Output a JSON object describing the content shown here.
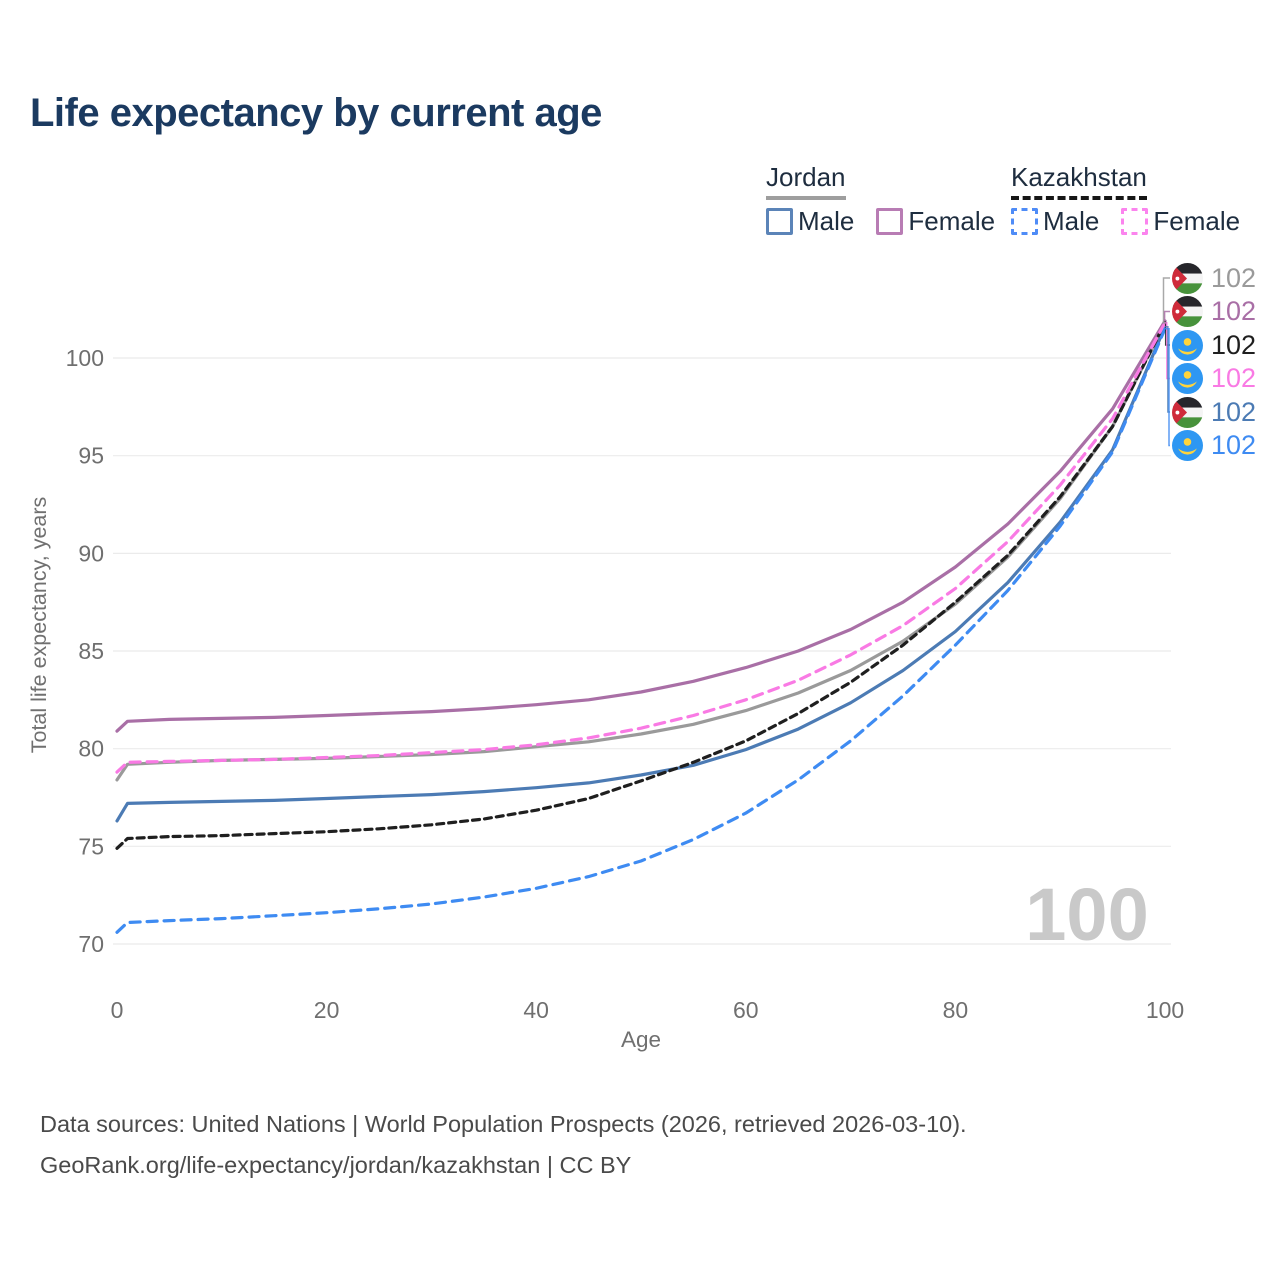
{
  "header": {
    "title": "Life expectancy by current age"
  },
  "legend": {
    "groups": [
      {
        "country": "Jordan",
        "line_style": "solid",
        "line_color": "#9e9e9e",
        "items": [
          {
            "label": "Male",
            "color": "#5b84b8",
            "dashed": false
          },
          {
            "label": "Female",
            "color": "#b87cb4",
            "dashed": false
          }
        ]
      },
      {
        "country": "Kazakhstan",
        "line_style": "dashed",
        "line_color": "#161616",
        "items": [
          {
            "label": "Male",
            "color": "#4f8cf7",
            "dashed": true
          },
          {
            "label": "Female",
            "color": "#fb84ee",
            "dashed": true
          }
        ]
      }
    ]
  },
  "chart_data": {
    "type": "line",
    "title": "Life expectancy by current age",
    "xlabel": "Age",
    "ylabel": "Total life expectancy, years",
    "xlim": [
      0,
      100
    ],
    "ylim": [
      69.5,
      103
    ],
    "xticks": [
      0,
      20,
      40,
      60,
      80,
      100
    ],
    "yticks": [
      70,
      75,
      80,
      85,
      90,
      95,
      100
    ],
    "grid": "horizontal",
    "legend_position": "top-right",
    "watermark_age": "100",
    "ages": [
      0,
      1,
      5,
      10,
      15,
      20,
      25,
      30,
      35,
      40,
      45,
      50,
      55,
      60,
      65,
      70,
      75,
      80,
      85,
      90,
      95,
      100
    ],
    "series": [
      {
        "id": "jordan-all",
        "country": "Jordan",
        "sex": "Both sexes",
        "name": "Jordan",
        "color": "#9a9a9a",
        "dashed": false,
        "row": 0,
        "end_label": "102",
        "values": [
          78.4,
          79.2,
          79.3,
          79.4,
          79.45,
          79.5,
          79.6,
          79.7,
          79.85,
          80.1,
          80.35,
          80.75,
          81.25,
          81.95,
          82.85,
          84.0,
          85.5,
          87.4,
          89.8,
          92.8,
          96.5,
          101.8
        ]
      },
      {
        "id": "jordan-female",
        "country": "Jordan",
        "sex": "Female",
        "name": "Jordan Female",
        "color": "#a96fa6",
        "dashed": false,
        "row": 1,
        "end_label": "102",
        "values": [
          80.9,
          81.4,
          81.5,
          81.55,
          81.6,
          81.7,
          81.8,
          81.9,
          82.05,
          82.25,
          82.5,
          82.9,
          83.45,
          84.15,
          85.0,
          86.1,
          87.5,
          89.3,
          91.5,
          94.2,
          97.4,
          101.9
        ]
      },
      {
        "id": "kazakhstan-all",
        "country": "Kazakhstan",
        "sex": "Both sexes",
        "name": "Kazakhstan",
        "color": "#1f1f1f",
        "dashed": true,
        "row": 2,
        "end_label": "102",
        "values": [
          74.9,
          75.4,
          75.5,
          75.55,
          75.65,
          75.75,
          75.9,
          76.1,
          76.4,
          76.85,
          77.45,
          78.35,
          79.3,
          80.4,
          81.8,
          83.4,
          85.3,
          87.5,
          89.9,
          92.9,
          96.5,
          101.8
        ]
      },
      {
        "id": "kazakhstan-female",
        "country": "Kazakhstan",
        "sex": "Female",
        "name": "Kazakhstan Female",
        "color": "#f97ae4",
        "dashed": true,
        "row": 3,
        "end_label": "102",
        "values": [
          78.8,
          79.3,
          79.35,
          79.4,
          79.45,
          79.55,
          79.65,
          79.8,
          79.95,
          80.2,
          80.55,
          81.05,
          81.7,
          82.5,
          83.5,
          84.8,
          86.3,
          88.2,
          90.6,
          93.5,
          96.9,
          101.8
        ]
      },
      {
        "id": "jordan-male",
        "country": "Jordan",
        "sex": "Male",
        "name": "Jordan Male",
        "color": "#4c7bb4",
        "dashed": false,
        "row": 4,
        "end_label": "102",
        "values": [
          76.3,
          77.2,
          77.25,
          77.3,
          77.35,
          77.45,
          77.55,
          77.65,
          77.8,
          78.0,
          78.25,
          78.65,
          79.15,
          79.95,
          81.0,
          82.35,
          84.0,
          86.0,
          88.5,
          91.6,
          95.3,
          101.6
        ]
      },
      {
        "id": "kazakhstan-male",
        "country": "Kazakhstan",
        "sex": "Male",
        "name": "Kazakhstan Male",
        "color": "#3e8bf2",
        "dashed": true,
        "row": 5,
        "end_label": "102",
        "values": [
          70.6,
          71.1,
          71.2,
          71.3,
          71.45,
          71.6,
          71.8,
          72.05,
          72.4,
          72.85,
          73.45,
          74.25,
          75.35,
          76.7,
          78.4,
          80.4,
          82.7,
          85.3,
          88.1,
          91.4,
          95.2,
          101.5
        ]
      }
    ]
  },
  "caption": {
    "line1": "Data sources: United Nations | World Population Prospects (2026, retrieved 2026-03-10).",
    "line2": "GeoRank.org/life-expectancy/jordan/kazakhstan | CC BY"
  }
}
